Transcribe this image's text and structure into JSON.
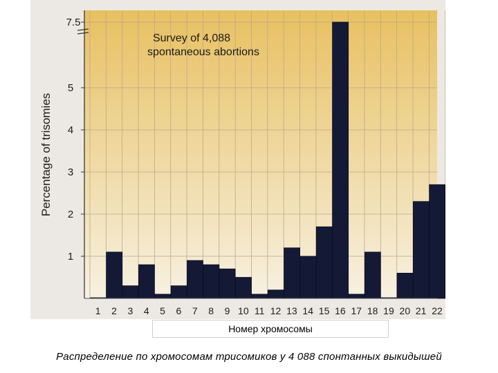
{
  "chart_data": {
    "type": "bar",
    "title_line1": "Survey of 4,088",
    "title_line2": "spontaneous abortions",
    "ylabel": "Percentage of trisomies",
    "xlabel": "Номер хромосомы",
    "categories": [
      "1",
      "2",
      "3",
      "4",
      "5",
      "6",
      "7",
      "8",
      "9",
      "10",
      "11",
      "12",
      "13",
      "14",
      "15",
      "16",
      "17",
      "18",
      "19",
      "20",
      "21",
      "22"
    ],
    "values": [
      0,
      1.1,
      0.3,
      0.8,
      0.1,
      0.3,
      0.9,
      0.8,
      0.7,
      0.5,
      0.1,
      0.2,
      1.2,
      1.0,
      1.7,
      7.5,
      0.1,
      1.1,
      0.0,
      0.6,
      2.3,
      2.7
    ],
    "yticks": [
      {
        "value": 1,
        "label": "1"
      },
      {
        "value": 2,
        "label": "2"
      },
      {
        "value": 3,
        "label": "3"
      },
      {
        "value": 4,
        "label": "4"
      },
      {
        "value": 5,
        "label": "5"
      },
      {
        "value": 7.5,
        "label": "7.5"
      }
    ],
    "axis_break": true,
    "grid": true,
    "colors": {
      "bar": "#141a36",
      "gradient_top": "#e8c060",
      "gradient_bottom": "#f7f1e2",
      "grid": "#b9a98a"
    }
  },
  "caption": "Распределение по хромосомам трисомиков у 4 088  спонтанных выкидышей"
}
